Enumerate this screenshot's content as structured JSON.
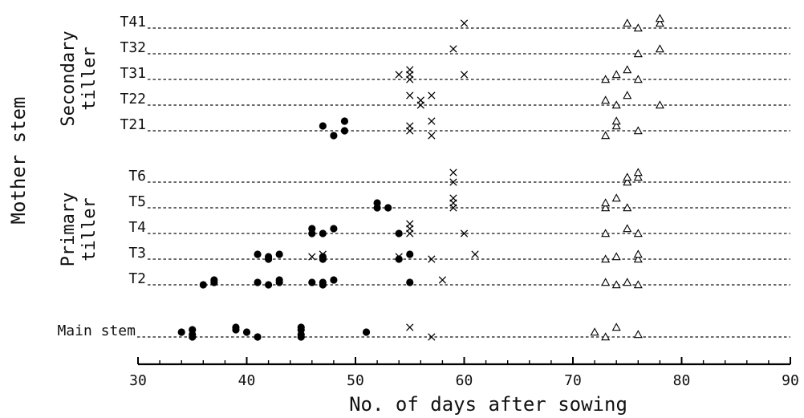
{
  "chart_data": {
    "type": "scatter",
    "xlabel": "No. of days after sowing",
    "xlim": [
      30,
      90
    ],
    "xticks": [
      30,
      40,
      50,
      60,
      70,
      80,
      90
    ],
    "y_axis_title": "Mother stem",
    "groups": [
      {
        "label": "Secondary tiller",
        "stems": [
          "T41",
          "T32",
          "T31",
          "T22",
          "T21"
        ]
      },
      {
        "label": "Primary tiller",
        "stems": [
          "T6",
          "T5",
          "T4",
          "T3",
          "T2"
        ]
      },
      {
        "label": "",
        "stems": [
          "Main stem"
        ]
      }
    ],
    "markers": {
      "circle": "filled circle",
      "cross": "x mark",
      "triangle": "open triangle"
    },
    "series": [
      {
        "stem": "T41",
        "points": [
          {
            "x": 60,
            "m": "cross",
            "lv": 1
          },
          {
            "x": 75,
            "m": "triangle",
            "lv": 1
          },
          {
            "x": 76,
            "m": "triangle",
            "lv": 0
          },
          {
            "x": 78,
            "m": "triangle",
            "lv": 1
          },
          {
            "x": 78,
            "m": "triangle",
            "lv": 2
          }
        ]
      },
      {
        "stem": "T32",
        "points": [
          {
            "x": 59,
            "m": "cross",
            "lv": 1
          },
          {
            "x": 76,
            "m": "triangle",
            "lv": 0
          },
          {
            "x": 78,
            "m": "triangle",
            "lv": 1
          }
        ]
      },
      {
        "stem": "T31",
        "points": [
          {
            "x": 54,
            "m": "cross",
            "lv": 1
          },
          {
            "x": 55,
            "m": "cross",
            "lv": 0
          },
          {
            "x": 55,
            "m": "cross",
            "lv": 1
          },
          {
            "x": 55,
            "m": "cross",
            "lv": 2
          },
          {
            "x": 60,
            "m": "cross",
            "lv": 1
          },
          {
            "x": 73,
            "m": "triangle",
            "lv": 0
          },
          {
            "x": 74,
            "m": "triangle",
            "lv": 1
          },
          {
            "x": 75,
            "m": "triangle",
            "lv": 2
          },
          {
            "x": 76,
            "m": "triangle",
            "lv": 0
          }
        ]
      },
      {
        "stem": "T22",
        "points": [
          {
            "x": 55,
            "m": "cross",
            "lv": 2
          },
          {
            "x": 56,
            "m": "cross",
            "lv": 0
          },
          {
            "x": 56,
            "m": "cross",
            "lv": 1
          },
          {
            "x": 57,
            "m": "cross",
            "lv": 2
          },
          {
            "x": 73,
            "m": "triangle",
            "lv": 1
          },
          {
            "x": 74,
            "m": "triangle",
            "lv": 0
          },
          {
            "x": 75,
            "m": "triangle",
            "lv": 2
          },
          {
            "x": 78,
            "m": "triangle",
            "lv": 0
          }
        ]
      },
      {
        "stem": "T21",
        "points": [
          {
            "x": 47,
            "m": "circle",
            "lv": 1
          },
          {
            "x": 48,
            "m": "circle",
            "lv": -1
          },
          {
            "x": 49,
            "m": "circle",
            "lv": 0
          },
          {
            "x": 49,
            "m": "circle",
            "lv": 2
          },
          {
            "x": 55,
            "m": "cross",
            "lv": 0
          },
          {
            "x": 55,
            "m": "cross",
            "lv": 1
          },
          {
            "x": 57,
            "m": "cross",
            "lv": -1
          },
          {
            "x": 57,
            "m": "cross",
            "lv": 2
          },
          {
            "x": 73,
            "m": "triangle",
            "lv": -1
          },
          {
            "x": 74,
            "m": "triangle",
            "lv": 1
          },
          {
            "x": 74,
            "m": "triangle",
            "lv": 2
          },
          {
            "x": 76,
            "m": "triangle",
            "lv": 0
          }
        ]
      },
      {
        "stem": "T6",
        "points": [
          {
            "x": 59,
            "m": "cross",
            "lv": 0
          },
          {
            "x": 59,
            "m": "cross",
            "lv": 2
          },
          {
            "x": 75,
            "m": "triangle",
            "lv": 0
          },
          {
            "x": 75,
            "m": "triangle",
            "lv": 1
          },
          {
            "x": 76,
            "m": "triangle",
            "lv": 1
          },
          {
            "x": 76,
            "m": "triangle",
            "lv": 2
          }
        ]
      },
      {
        "stem": "T5",
        "points": [
          {
            "x": 52,
            "m": "circle",
            "lv": 0
          },
          {
            "x": 52,
            "m": "circle",
            "lv": 1
          },
          {
            "x": 53,
            "m": "circle",
            "lv": 0
          },
          {
            "x": 59,
            "m": "cross",
            "lv": 0
          },
          {
            "x": 59,
            "m": "cross",
            "lv": 1
          },
          {
            "x": 59,
            "m": "cross",
            "lv": 2
          },
          {
            "x": 73,
            "m": "triangle",
            "lv": 0
          },
          {
            "x": 73,
            "m": "triangle",
            "lv": 1
          },
          {
            "x": 74,
            "m": "triangle",
            "lv": 2
          },
          {
            "x": 75,
            "m": "triangle",
            "lv": 0
          }
        ]
      },
      {
        "stem": "T4",
        "points": [
          {
            "x": 46,
            "m": "circle",
            "lv": 0
          },
          {
            "x": 46,
            "m": "circle",
            "lv": 1
          },
          {
            "x": 47,
            "m": "circle",
            "lv": 0
          },
          {
            "x": 48,
            "m": "circle",
            "lv": 1
          },
          {
            "x": 54,
            "m": "circle",
            "lv": 0
          },
          {
            "x": 55,
            "m": "cross",
            "lv": 0
          },
          {
            "x": 55,
            "m": "cross",
            "lv": 1
          },
          {
            "x": 55,
            "m": "cross",
            "lv": 2
          },
          {
            "x": 60,
            "m": "cross",
            "lv": 0
          },
          {
            "x": 73,
            "m": "triangle",
            "lv": 0
          },
          {
            "x": 75,
            "m": "triangle",
            "lv": 1
          },
          {
            "x": 76,
            "m": "triangle",
            "lv": 0
          }
        ]
      },
      {
        "stem": "T3",
        "points": [
          {
            "x": 41,
            "m": "circle",
            "lv": 1
          },
          {
            "x": 42,
            "m": "circle",
            "lv": 0
          },
          {
            "x": 42,
            "m": "circle",
            "lv": 0.5
          },
          {
            "x": 43,
            "m": "circle",
            "lv": 1
          },
          {
            "x": 46,
            "m": "cross",
            "lv": 0.5
          },
          {
            "x": 47,
            "m": "circle",
            "lv": 0
          },
          {
            "x": 47,
            "m": "circle",
            "lv": 0.5
          },
          {
            "x": 47,
            "m": "cross",
            "lv": 1
          },
          {
            "x": 54,
            "m": "circle",
            "lv": 0
          },
          {
            "x": 54,
            "m": "cross",
            "lv": 0.5
          },
          {
            "x": 55,
            "m": "circle",
            "lv": 1
          },
          {
            "x": 57,
            "m": "cross",
            "lv": 0
          },
          {
            "x": 61,
            "m": "cross",
            "lv": 1
          },
          {
            "x": 73,
            "m": "triangle",
            "lv": 0
          },
          {
            "x": 74,
            "m": "triangle",
            "lv": 0.5
          },
          {
            "x": 76,
            "m": "triangle",
            "lv": 0
          },
          {
            "x": 76,
            "m": "triangle",
            "lv": 1
          }
        ]
      },
      {
        "stem": "T2",
        "points": [
          {
            "x": 36,
            "m": "circle",
            "lv": 0
          },
          {
            "x": 37,
            "m": "circle",
            "lv": 0.5
          },
          {
            "x": 37,
            "m": "circle",
            "lv": 1
          },
          {
            "x": 41,
            "m": "circle",
            "lv": 0.5
          },
          {
            "x": 42,
            "m": "circle",
            "lv": 0
          },
          {
            "x": 43,
            "m": "circle",
            "lv": 0.5
          },
          {
            "x": 43,
            "m": "circle",
            "lv": 1
          },
          {
            "x": 46,
            "m": "circle",
            "lv": 0.5
          },
          {
            "x": 47,
            "m": "circle",
            "lv": 0
          },
          {
            "x": 47,
            "m": "circle",
            "lv": 0.5
          },
          {
            "x": 48,
            "m": "circle",
            "lv": 1
          },
          {
            "x": 55,
            "m": "circle",
            "lv": 0.5
          },
          {
            "x": 58,
            "m": "cross",
            "lv": 1
          },
          {
            "x": 73,
            "m": "triangle",
            "lv": 0.5
          },
          {
            "x": 74,
            "m": "triangle",
            "lv": 0
          },
          {
            "x": 75,
            "m": "triangle",
            "lv": 0.5
          },
          {
            "x": 76,
            "m": "triangle",
            "lv": 0
          }
        ]
      },
      {
        "stem": "Main stem",
        "points": [
          {
            "x": 34,
            "m": "circle",
            "lv": 1
          },
          {
            "x": 35,
            "m": "circle",
            "lv": 0
          },
          {
            "x": 35,
            "m": "circle",
            "lv": 0.5
          },
          {
            "x": 35,
            "m": "circle",
            "lv": 1.5
          },
          {
            "x": 39,
            "m": "circle",
            "lv": 1.5
          },
          {
            "x": 39,
            "m": "circle",
            "lv": 2
          },
          {
            "x": 40,
            "m": "circle",
            "lv": 1
          },
          {
            "x": 41,
            "m": "circle",
            "lv": 0
          },
          {
            "x": 45,
            "m": "circle",
            "lv": 0
          },
          {
            "x": 45,
            "m": "circle",
            "lv": 0.5
          },
          {
            "x": 45,
            "m": "circle",
            "lv": 1.5
          },
          {
            "x": 45,
            "m": "circle",
            "lv": 2
          },
          {
            "x": 51,
            "m": "circle",
            "lv": 1
          },
          {
            "x": 55,
            "m": "cross",
            "lv": 2
          },
          {
            "x": 57,
            "m": "cross",
            "lv": 0
          },
          {
            "x": 72,
            "m": "triangle",
            "lv": 1
          },
          {
            "x": 73,
            "m": "triangle",
            "lv": 0
          },
          {
            "x": 74,
            "m": "triangle",
            "lv": 2
          },
          {
            "x": 76,
            "m": "triangle",
            "lv": 0.5
          }
        ]
      }
    ]
  }
}
